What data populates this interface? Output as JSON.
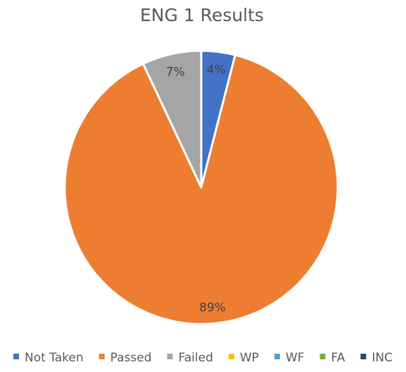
{
  "chart_data": {
    "type": "pie",
    "title": "ENG 1 Results",
    "categories": [
      "Not Taken",
      "Passed",
      "Failed",
      "WP",
      "WF",
      "FA",
      "INC"
    ],
    "values": [
      4,
      89,
      7,
      0,
      0,
      0,
      0
    ],
    "data_labels": [
      "4%",
      "89%",
      "7%",
      "",
      "",
      "",
      ""
    ],
    "colors": [
      "#4472C4",
      "#ED7D31",
      "#A5A5A5",
      "#FFC000",
      "#5B9BD5",
      "#70AD47",
      "#264478"
    ],
    "legend_position": "bottom",
    "start_angle_deg": 0,
    "direction": "clockwise"
  }
}
